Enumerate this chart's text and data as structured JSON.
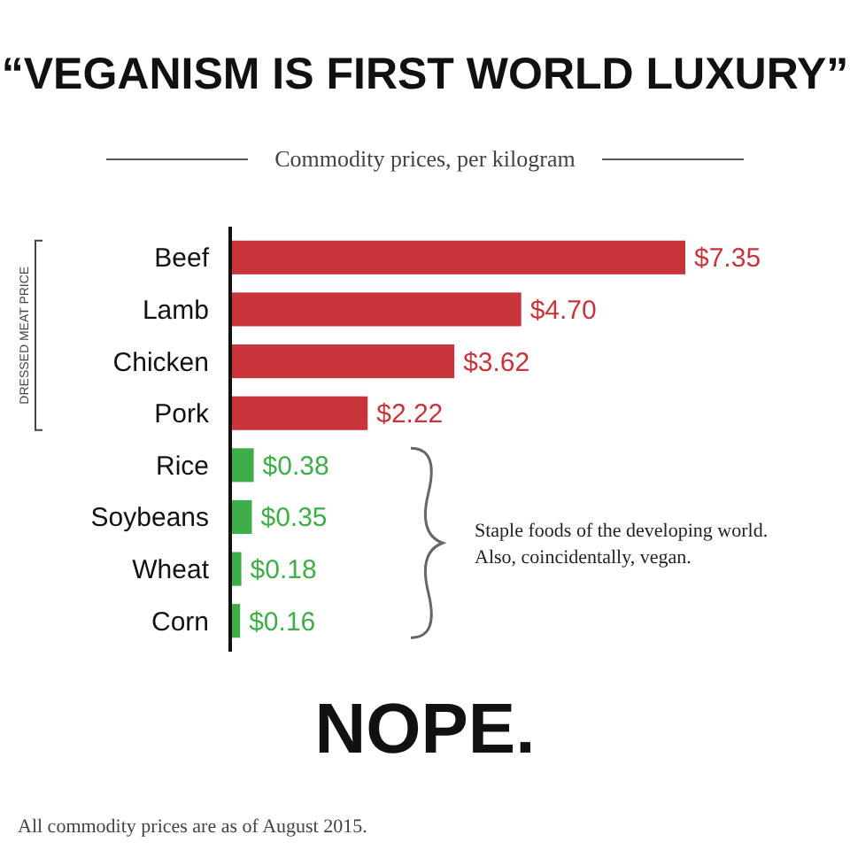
{
  "chart_data": {
    "type": "bar",
    "orientation": "horizontal",
    "title": "“VEGANISM IS FIRST WORLD LUXURY”",
    "subtitle": "Commodity prices, per kilogram",
    "categories": [
      "Beef",
      "Lamb",
      "Chicken",
      "Pork",
      "Rice",
      "Soybeans",
      "Wheat",
      "Corn"
    ],
    "values": [
      7.35,
      4.7,
      3.62,
      2.22,
      0.38,
      0.35,
      0.18,
      0.16
    ],
    "value_labels": [
      "$7.35",
      "$4.70",
      "$3.62",
      "$2.22",
      "$0.38",
      "$0.35",
      "$0.18",
      "$0.16"
    ],
    "colors": [
      "#c9343b",
      "#c9343b",
      "#c9343b",
      "#c9343b",
      "#3fae49",
      "#3fae49",
      "#3fae49",
      "#3fae49"
    ],
    "annotations": [
      "DRESSED MEAT PRICE",
      "Staple foods of the developing world. Also, coincidentally, vegan.",
      "NOPE.",
      "All commodity prices are as of August 2015."
    ]
  }
}
